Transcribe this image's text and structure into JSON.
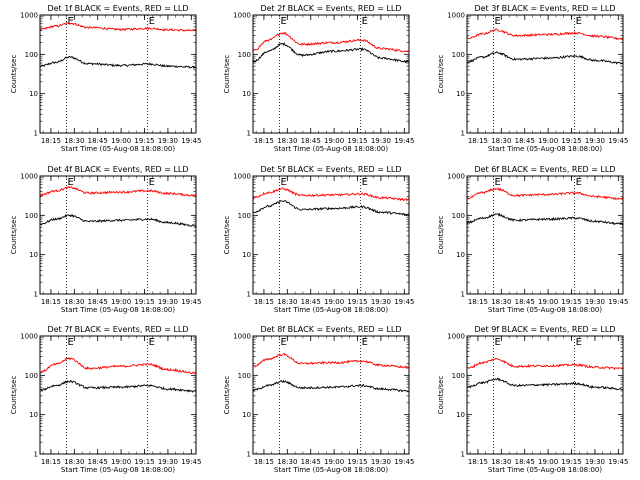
{
  "figure": {
    "ylabel": "Counts/sec",
    "xlabel": "Start Time (05-Aug-08 18:08:00)",
    "y_ticks": [
      "1",
      "10",
      "100",
      "1000"
    ],
    "ylim": [
      1,
      1000
    ],
    "y_scale": "log",
    "x_tick_variants": [
      [
        "18:15",
        "18:30",
        "18:45",
        "19:00",
        "19:15",
        "19:30",
        "19:45"
      ],
      [
        "18:15",
        "18:30",
        "18:45",
        "19:00",
        "19:15",
        "19:30",
        "19:45"
      ],
      [
        "18:15",
        "18:30",
        "18:45",
        "19:00",
        "19:15",
        "19:30",
        "19:45"
      ]
    ],
    "colors": {
      "events": "#000000",
      "lld": "#ff0000",
      "axes": "#000000"
    }
  },
  "chart_data": [
    {
      "type": "line",
      "title": "Det 1f BLACK = Events, RED = LLD",
      "marker": "E",
      "xlim": [
        18.1333,
        19.8
      ],
      "ylim": [
        1,
        1000
      ],
      "y_scale": "log",
      "markers_x": [
        18.4167,
        19.2833
      ],
      "series": [
        {
          "color": "#000000",
          "x": [
            18.1333,
            18.3,
            18.45,
            18.65,
            19.0,
            19.3,
            19.5,
            19.8
          ],
          "y": [
            50,
            62,
            85,
            58,
            52,
            57,
            50,
            47
          ]
        },
        {
          "color": "#ff0000",
          "x": [
            18.1333,
            18.3,
            18.45,
            18.65,
            19.0,
            19.3,
            19.5,
            19.8
          ],
          "y": [
            430,
            520,
            620,
            480,
            430,
            460,
            420,
            400
          ]
        }
      ]
    },
    {
      "type": "line",
      "title": "Det 2f BLACK = Events, RED = LLD",
      "marker": "E",
      "xlim": [
        18.1333,
        19.8
      ],
      "ylim": [
        1,
        1000
      ],
      "y_scale": "log",
      "markers_x": [
        18.4167,
        19.2833
      ],
      "series": [
        {
          "color": "#000000",
          "x": [
            18.1333,
            18.3,
            18.45,
            18.65,
            19.0,
            19.3,
            19.5,
            19.8
          ],
          "y": [
            65,
            120,
            185,
            95,
            120,
            135,
            80,
            65
          ]
        },
        {
          "color": "#ff0000",
          "x": [
            18.1333,
            18.3,
            18.45,
            18.65,
            19.0,
            19.3,
            19.5,
            19.8
          ],
          "y": [
            125,
            230,
            350,
            180,
            200,
            230,
            140,
            120
          ]
        }
      ]
    },
    {
      "type": "line",
      "title": "Det 3f BLACK = Events, RED = LLD",
      "marker": "E",
      "xlim": [
        18.1333,
        19.8
      ],
      "ylim": [
        1,
        1000
      ],
      "y_scale": "log",
      "markers_x": [
        18.4167,
        19.2833
      ],
      "series": [
        {
          "color": "#000000",
          "x": [
            18.1333,
            18.3,
            18.45,
            18.65,
            19.0,
            19.3,
            19.5,
            19.8
          ],
          "y": [
            65,
            85,
            110,
            75,
            80,
            90,
            70,
            60
          ]
        },
        {
          "color": "#ff0000",
          "x": [
            18.1333,
            18.3,
            18.45,
            18.65,
            19.0,
            19.3,
            19.5,
            19.8
          ],
          "y": [
            250,
            330,
            420,
            300,
            320,
            350,
            290,
            250
          ]
        }
      ]
    },
    {
      "type": "line",
      "title": "Det 4f BLACK = Events, RED = LLD",
      "marker": "E",
      "xlim": [
        18.1333,
        19.8
      ],
      "ylim": [
        1,
        1000
      ],
      "y_scale": "log",
      "markers_x": [
        18.4167,
        19.2833
      ],
      "series": [
        {
          "color": "#000000",
          "x": [
            18.1333,
            18.3,
            18.45,
            18.65,
            19.0,
            19.3,
            19.5,
            19.8
          ],
          "y": [
            60,
            80,
            100,
            70,
            75,
            80,
            65,
            55
          ]
        },
        {
          "color": "#ff0000",
          "x": [
            18.1333,
            18.3,
            18.45,
            18.65,
            19.0,
            19.3,
            19.5,
            19.8
          ],
          "y": [
            330,
            420,
            510,
            370,
            390,
            420,
            360,
            320
          ]
        }
      ]
    },
    {
      "type": "line",
      "title": "Det 5f BLACK = Events, RED = LLD",
      "marker": "E",
      "xlim": [
        18.1333,
        19.8
      ],
      "ylim": [
        1,
        1000
      ],
      "y_scale": "log",
      "markers_x": [
        18.4167,
        19.2833
      ],
      "series": [
        {
          "color": "#000000",
          "x": [
            18.1333,
            18.3,
            18.45,
            18.65,
            19.0,
            19.3,
            19.5,
            19.8
          ],
          "y": [
            120,
            170,
            230,
            140,
            150,
            165,
            120,
            105
          ]
        },
        {
          "color": "#ff0000",
          "x": [
            18.1333,
            18.3,
            18.45,
            18.65,
            19.0,
            19.3,
            19.5,
            19.8
          ],
          "y": [
            280,
            380,
            470,
            320,
            330,
            350,
            280,
            250
          ]
        }
      ]
    },
    {
      "type": "line",
      "title": "Det 6f BLACK = Events, RED = LLD",
      "marker": "E",
      "xlim": [
        18.1333,
        19.8
      ],
      "ylim": [
        1,
        1000
      ],
      "y_scale": "log",
      "markers_x": [
        18.4167,
        19.2833
      ],
      "series": [
        {
          "color": "#000000",
          "x": [
            18.1333,
            18.3,
            18.45,
            18.65,
            19.0,
            19.3,
            19.5,
            19.8
          ],
          "y": [
            65,
            85,
            105,
            75,
            80,
            85,
            70,
            60
          ]
        },
        {
          "color": "#ff0000",
          "x": [
            18.1333,
            18.3,
            18.45,
            18.65,
            19.0,
            19.3,
            19.5,
            19.8
          ],
          "y": [
            270,
            380,
            470,
            320,
            340,
            370,
            300,
            260
          ]
        }
      ]
    },
    {
      "type": "line",
      "title": "Det 7f BLACK = Events, RED = LLD",
      "marker": "E",
      "xlim": [
        18.1333,
        19.8
      ],
      "ylim": [
        1,
        1000
      ],
      "y_scale": "log",
      "markers_x": [
        18.4167,
        19.2833
      ],
      "series": [
        {
          "color": "#000000",
          "x": [
            18.1333,
            18.3,
            18.45,
            18.65,
            19.0,
            19.3,
            19.5,
            19.8
          ],
          "y": [
            42,
            55,
            70,
            48,
            50,
            55,
            45,
            40
          ]
        },
        {
          "color": "#ff0000",
          "x": [
            18.1333,
            18.3,
            18.45,
            18.65,
            19.0,
            19.3,
            19.5,
            19.8
          ],
          "y": [
            120,
            190,
            270,
            150,
            170,
            190,
            140,
            115
          ]
        }
      ]
    },
    {
      "type": "line",
      "title": "Det 8f BLACK = Events, RED = LLD",
      "marker": "E",
      "xlim": [
        18.1333,
        19.8
      ],
      "ylim": [
        1,
        1000
      ],
      "y_scale": "log",
      "markers_x": [
        18.4167,
        19.2833
      ],
      "series": [
        {
          "color": "#000000",
          "x": [
            18.1333,
            18.3,
            18.45,
            18.65,
            19.0,
            19.3,
            19.5,
            19.8
          ],
          "y": [
            42,
            55,
            70,
            48,
            50,
            55,
            45,
            40
          ]
        },
        {
          "color": "#ff0000",
          "x": [
            18.1333,
            18.3,
            18.45,
            18.65,
            19.0,
            19.3,
            19.5,
            19.8
          ],
          "y": [
            170,
            260,
            340,
            200,
            210,
            230,
            180,
            160
          ]
        }
      ]
    },
    {
      "type": "line",
      "title": "Det 9f BLACK = Events, RED = LLD",
      "marker": "E",
      "xlim": [
        18.1333,
        19.8
      ],
      "ylim": [
        1,
        1000
      ],
      "y_scale": "log",
      "markers_x": [
        18.4167,
        19.2833
      ],
      "series": [
        {
          "color": "#000000",
          "x": [
            18.1333,
            18.3,
            18.45,
            18.65,
            19.0,
            19.3,
            19.5,
            19.8
          ],
          "y": [
            50,
            65,
            80,
            55,
            58,
            62,
            50,
            45
          ]
        },
        {
          "color": "#ff0000",
          "x": [
            18.1333,
            18.3,
            18.45,
            18.65,
            19.0,
            19.3,
            19.5,
            19.8
          ],
          "y": [
            150,
            210,
            260,
            170,
            175,
            185,
            160,
            150
          ]
        }
      ]
    }
  ]
}
